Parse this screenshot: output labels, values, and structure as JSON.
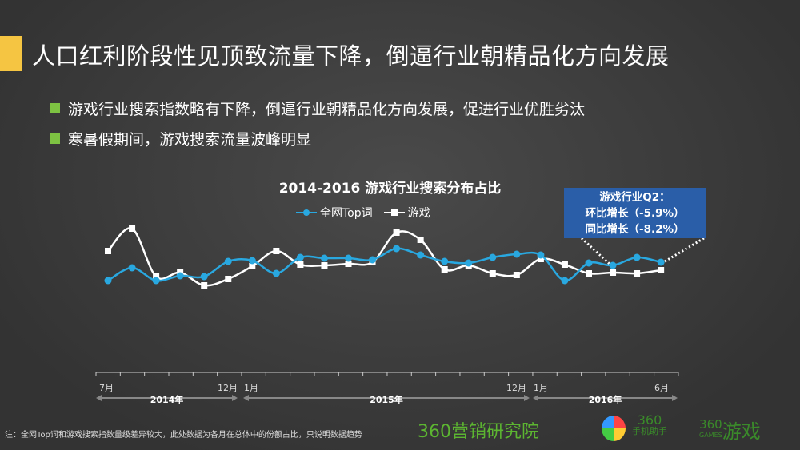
{
  "header": {
    "title": "人口红利阶段性见顶致流量下降，倒逼行业朝精品化方向发展",
    "bullets": [
      "游戏行业搜索指数略有下降，倒逼行业朝精品化方向发展，促进行业优胜劣汰",
      "寒暑假期间，游戏搜索流量波峰明显"
    ]
  },
  "colors": {
    "accent": "#f5c542",
    "bullet": "#7dc242",
    "series1": "#29a8e0",
    "series2": "#ffffff",
    "callout": "#2a5ea8"
  },
  "chart_data": {
    "type": "line",
    "title": "2014-2016 游戏行业搜索分布占比",
    "x": [
      "2014-07",
      "2014-08",
      "2014-09",
      "2014-10",
      "2014-11",
      "2014-12",
      "2015-01",
      "2015-02",
      "2015-03",
      "2015-04",
      "2015-05",
      "2015-06",
      "2015-07",
      "2015-08",
      "2015-09",
      "2015-10",
      "2015-11",
      "2015-12",
      "2016-01",
      "2016-02",
      "2016-03",
      "2016-04",
      "2016-05",
      "2016-06"
    ],
    "series": [
      {
        "name": "全网Top词",
        "values": [
          9,
          25,
          9,
          15,
          14,
          33,
          34,
          18,
          38,
          37,
          37,
          35,
          49,
          41,
          33,
          31,
          38,
          42,
          41,
          9,
          31,
          28,
          38,
          32
        ]
      },
      {
        "name": "游戏",
        "values": [
          46,
          74,
          14,
          19,
          3,
          11,
          27,
          46,
          29,
          28,
          30,
          32,
          69,
          60,
          23,
          28,
          18,
          16,
          36,
          29,
          18,
          19,
          18,
          22
        ]
      }
    ],
    "ylim": [
      0,
      80
    ],
    "legend": "top-center",
    "grid": false,
    "axis_labels": {
      "m2014_start": "7月",
      "m2014_end": "12月",
      "m2015_start": "1月",
      "m2015_end": "12月",
      "m2016_start": "1月",
      "m2016_end": "6月"
    },
    "years": [
      "2014年",
      "2015年",
      "2016年"
    ],
    "annotation": {
      "line1": "游戏行业Q2：",
      "line2": "环比增长（-5.9%）",
      "line3": "同比增长（-8.2%）"
    }
  },
  "footer": {
    "note": "注：全网Top词和游戏搜索指数量级差异较大，此处数据为各月在总体中的份额占比，只说明数据趋势",
    "logo1": "360营销研究院",
    "logo2_a": "360",
    "logo2_b": "手机助手",
    "logo3_a": "360",
    "logo3_b": "GAMES",
    "logo3_c": "游戏"
  }
}
